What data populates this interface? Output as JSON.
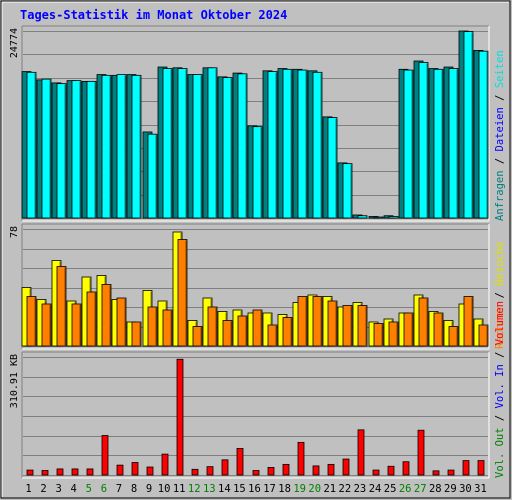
{
  "chart_data": {
    "type": "bar",
    "title": "Tages-Statistik im Monat Oktober 2024",
    "categories": [
      "1",
      "2",
      "3",
      "4",
      "5",
      "6",
      "7",
      "8",
      "9",
      "10",
      "11",
      "12",
      "13",
      "14",
      "15",
      "16",
      "17",
      "18",
      "19",
      "20",
      "21",
      "22",
      "23",
      "24",
      "25",
      "26",
      "27",
      "28",
      "29",
      "30",
      "31"
    ],
    "weekend_days": [
      5,
      6,
      12,
      13,
      19,
      20,
      26,
      27
    ],
    "panels": [
      {
        "id": "top",
        "max_label": "24774",
        "max_value": 24774,
        "series": [
          {
            "name": "Anfragen",
            "color": "#008080",
            "values": [
              19400,
              18300,
              17900,
              18200,
              18100,
              19000,
              18900,
              19000,
              11400,
              20000,
              19900,
              19000,
              19900,
              18700,
              19200,
              12200,
              19500,
              19800,
              19700,
              19500,
              13400,
              7300,
              400,
              200,
              300,
              19700,
              20800,
              19800,
              20000,
              24774,
              22200
            ]
          },
          {
            "name": "Dateien",
            "color": "#0000ff",
            "values": []
          },
          {
            "name": "Seiten",
            "color": "#00ffff",
            "values": [
              19300,
              18400,
              17800,
              18200,
              18100,
              18900,
              19000,
              18900,
              11100,
              19800,
              19800,
              19000,
              19900,
              18600,
              19100,
              12100,
              19400,
              19700,
              19600,
              19300,
              13300,
              7200,
              300,
              100,
              200,
              19600,
              20600,
              19700,
              19800,
              24700,
              22100
            ]
          }
        ],
        "label_order": [
          "Seiten",
          "Dateien",
          "Anfragen"
        ],
        "labels_full": "Anfragen / Dateien / Seiten"
      },
      {
        "id": "mid",
        "max_label": "78",
        "max_value": 78,
        "series": [
          {
            "name": "Besuche",
            "color": "#ffff00",
            "values": [
              39,
              31,
              57,
              30,
              46,
              47,
              31,
              16,
              37,
              30,
              76,
              17,
              32,
              23,
              24,
              22,
              22,
              21,
              29,
              34,
              33,
              26,
              29,
              16,
              18,
              22,
              34,
              23,
              17,
              28,
              18
            ]
          },
          {
            "name": "Rechner",
            "color": "#ff8000",
            "values": [
              33,
              28,
              53,
              28,
              36,
              41,
              32,
              16,
              26,
              24,
              71,
              13,
              26,
              17,
              20,
              24,
              14,
              19,
              33,
              33,
              30,
              27,
              27,
              15,
              16,
              22,
              32,
              22,
              13,
              33,
              14
            ]
          }
        ],
        "label_order": [
          "Besuche",
          "Rechner"
        ],
        "labels_full": "Rechner / Besuche"
      },
      {
        "id": "bot",
        "max_label": "310.91 KB",
        "max_value": 310.91,
        "series": [
          {
            "name": "Vol. Out",
            "color": "#008000",
            "values": []
          },
          {
            "name": "Vol. In",
            "color": "#0000ff",
            "values": []
          },
          {
            "name": "Volumen",
            "color": "#ff0000",
            "values": [
              13,
              12,
              16,
              16,
              16,
              104,
              26,
              33,
              21,
              55,
              305,
              15,
              22,
              40,
              70,
              12,
              20,
              28,
              86,
              24,
              28,
              42,
              119,
              13,
              23,
              35,
              118,
              11,
              13,
              38,
              38
            ]
          }
        ],
        "label_order": [
          "Volumen",
          "Vol. In",
          "Vol. Out"
        ],
        "labels_full": "Volumen / Vol. In / Vol. Out"
      }
    ]
  },
  "right_labels": {
    "top": [
      {
        "text": "Anfragen",
        "color": "#008080"
      },
      {
        "text": " / ",
        "color": "#000000"
      },
      {
        "text": "Dateien",
        "color": "#0000ff"
      },
      {
        "text": " / ",
        "color": "#000000"
      },
      {
        "text": "Seiten",
        "color": "#00e0e0"
      }
    ],
    "mid": [
      {
        "text": "Rechner",
        "color": "#ff8000"
      },
      {
        "text": " / ",
        "color": "#000000"
      },
      {
        "text": "Besuche",
        "color": "#e0e000"
      }
    ],
    "bot": [
      {
        "text": "Vol. Out",
        "color": "#008000"
      },
      {
        "text": " / ",
        "color": "#000000"
      },
      {
        "text": "Vol. In",
        "color": "#0000ff"
      },
      {
        "text": " / ",
        "color": "#000000"
      },
      {
        "text": "Volumen",
        "color": "#ff0000"
      }
    ]
  },
  "colors": {
    "title": "#0000ff",
    "weekday_label": "#000000",
    "weekend_label": "#008000",
    "background": "#c0c0c0",
    "grid": "#808080"
  }
}
